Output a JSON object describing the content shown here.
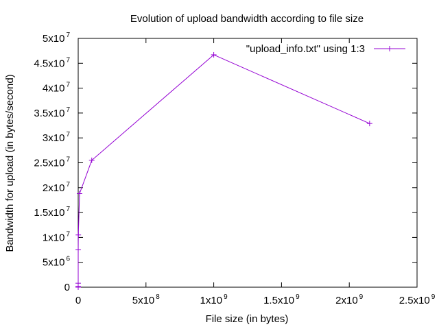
{
  "chart_data": {
    "type": "line",
    "title": "Evolution of upload bandwidth according to file size",
    "xlabel": "File size (in bytes)",
    "ylabel": "Bandwidth for upload (in bytes/second)",
    "xlim": [
      0,
      2500000000
    ],
    "ylim": [
      0,
      50000000
    ],
    "grid": false,
    "legend_position": "top-right",
    "x_ticks": [
      {
        "value": 0,
        "base": "0",
        "exp": ""
      },
      {
        "value": 500000000,
        "base": "5x10",
        "exp": "8"
      },
      {
        "value": 1000000000,
        "base": "1x10",
        "exp": "9"
      },
      {
        "value": 1500000000,
        "base": "1.5x10",
        "exp": "9"
      },
      {
        "value": 2000000000,
        "base": "2x10",
        "exp": "9"
      },
      {
        "value": 2500000000,
        "base": "2.5x10",
        "exp": "9"
      }
    ],
    "y_ticks": [
      {
        "value": 0,
        "base": "0",
        "exp": ""
      },
      {
        "value": 5000000,
        "base": "5x10",
        "exp": "6"
      },
      {
        "value": 10000000,
        "base": "1x10",
        "exp": "7"
      },
      {
        "value": 15000000,
        "base": "1.5x10",
        "exp": "7"
      },
      {
        "value": 20000000,
        "base": "2x10",
        "exp": "7"
      },
      {
        "value": 25000000,
        "base": "2.5x10",
        "exp": "7"
      },
      {
        "value": 30000000,
        "base": "3x10",
        "exp": "7"
      },
      {
        "value": 35000000,
        "base": "3.5x10",
        "exp": "7"
      },
      {
        "value": 40000000,
        "base": "4x10",
        "exp": "7"
      },
      {
        "value": 45000000,
        "base": "4.5x10",
        "exp": "7"
      },
      {
        "value": 50000000,
        "base": "5x10",
        "exp": "7"
      }
    ],
    "series": [
      {
        "name": "\"upload_info.txt\" using 1:3",
        "color": "#9400d3",
        "x": [
          100,
          1000,
          10000,
          100000,
          1000000,
          10000000,
          100000000,
          1000000000,
          2150000000
        ],
        "y": [
          0,
          200000,
          800000,
          7500000,
          10500000,
          18800000,
          25500000,
          46700000,
          32900000
        ]
      }
    ]
  }
}
